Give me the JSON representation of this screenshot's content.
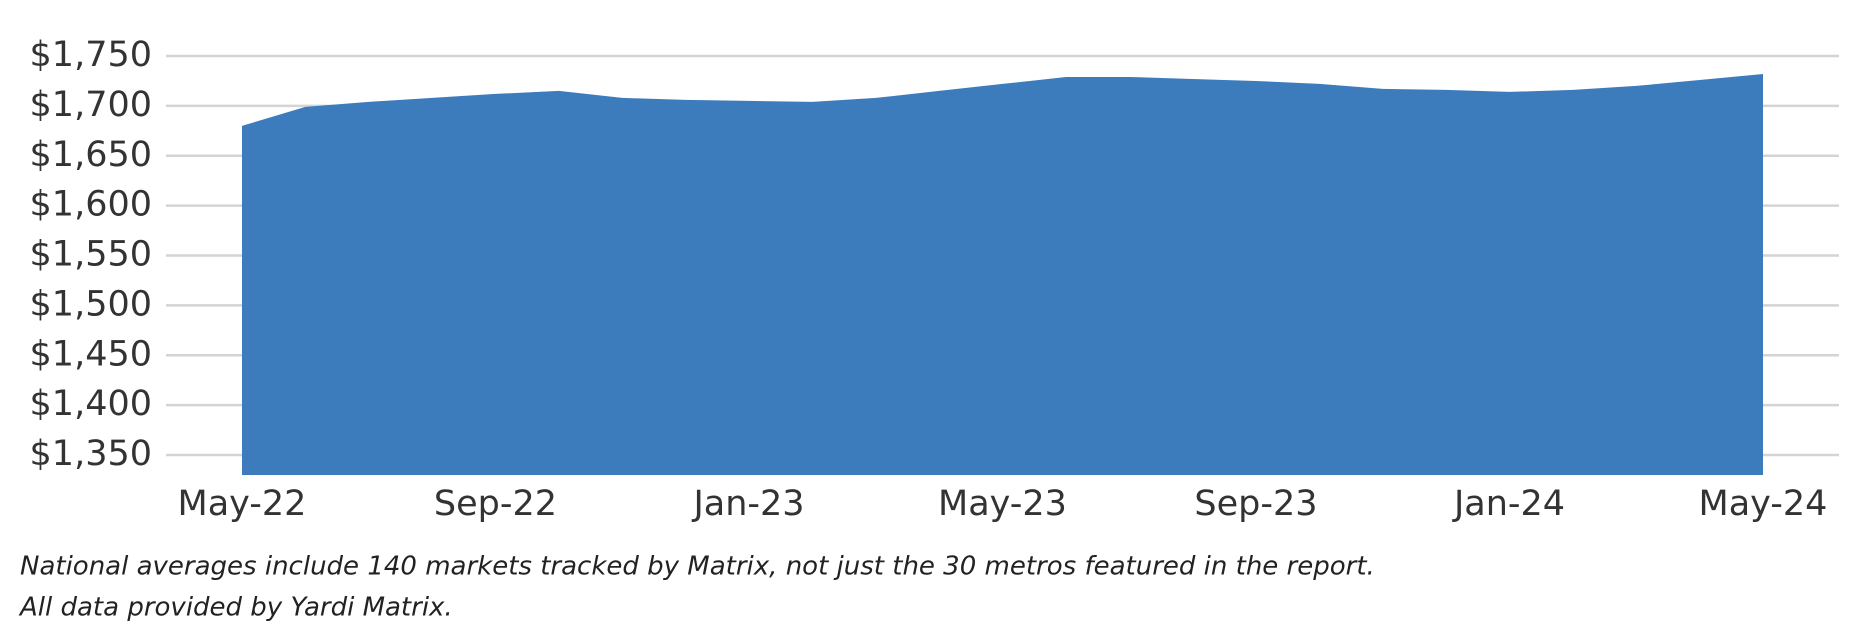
{
  "chart_data": {
    "type": "area",
    "categories": [
      "May-22",
      null,
      null,
      null,
      "Sep-22",
      null,
      null,
      null,
      "Jan-23",
      null,
      null,
      null,
      "May-23",
      null,
      null,
      null,
      "Sep-23",
      null,
      null,
      null,
      "Jan-24",
      null,
      null,
      null,
      "May-24"
    ],
    "values": [
      1680,
      1699,
      1704,
      1708,
      1712,
      1715,
      1708,
      1706,
      1705,
      1704,
      1708,
      1715,
      1722,
      1729,
      1729,
      1727,
      1725,
      1722,
      1717,
      1716,
      1714,
      1716,
      1720,
      1726,
      1732
    ],
    "color": "#3d7cbc",
    "ylim": [
      1330,
      1750
    ],
    "yticks": [
      {
        "value": 1350,
        "label": "$1,350"
      },
      {
        "value": 1400,
        "label": "$1,400"
      },
      {
        "value": 1450,
        "label": "$1,450"
      },
      {
        "value": 1500,
        "label": "$1,500"
      },
      {
        "value": 1550,
        "label": "$1,550"
      },
      {
        "value": 1600,
        "label": "$1,600"
      },
      {
        "value": 1650,
        "label": "$1,650"
      },
      {
        "value": 1700,
        "label": "$1,700"
      },
      {
        "value": 1750,
        "label": "$1,750"
      }
    ],
    "grid": true,
    "notes": [
      "National averages include 140 markets tracked by Matrix, not just the 30 metros featured in the report.",
      "All data provided by Yardi Matrix."
    ]
  }
}
